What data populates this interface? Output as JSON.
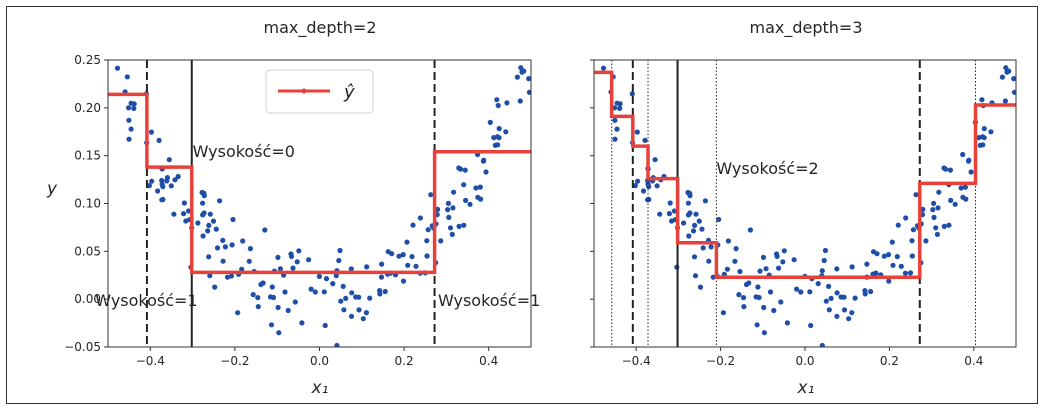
{
  "chart_data": [
    {
      "type": "scatter",
      "title": "max_depth=2",
      "xlabel": "x₁",
      "ylabel": "y",
      "xlim": [
        -0.5,
        0.5
      ],
      "ylim": [
        -0.05,
        0.25
      ],
      "xticks": [
        "−0.4",
        "−0.2",
        "0.0",
        "0.2",
        "0.4"
      ],
      "xtick_values": [
        -0.4,
        -0.2,
        0.0,
        0.2,
        0.4
      ],
      "yticks": [
        "−0.05",
        "0.00",
        "0.05",
        "0.10",
        "0.15",
        "0.20",
        "0.25"
      ],
      "ytick_values": [
        -0.05,
        0.0,
        0.05,
        0.1,
        0.15,
        0.2,
        0.25
      ],
      "legend": {
        "label": "ŷ",
        "placement": "upper-center"
      },
      "prediction_steps": [
        {
          "x0": -0.5,
          "x1": -0.408,
          "y": 0.214
        },
        {
          "x0": -0.408,
          "x1": -0.302,
          "y": 0.138
        },
        {
          "x0": -0.302,
          "x1": 0.272,
          "y": 0.028
        },
        {
          "x0": 0.272,
          "x1": 0.5,
          "y": 0.154
        }
      ],
      "splits": [
        {
          "x": -0.302,
          "style": "solid"
        },
        {
          "x": -0.408,
          "style": "dashed"
        },
        {
          "x": 0.272,
          "style": "dashed"
        }
      ],
      "annotations": [
        {
          "text": "Wysokość=0",
          "x": -0.3,
          "y": 0.155
        },
        {
          "text": "Wysokość=1",
          "x": -0.53,
          "y": -0.001
        },
        {
          "text": "Wysokość=1",
          "x": 0.28,
          "y": -0.001
        }
      ]
    },
    {
      "type": "scatter",
      "title": "max_depth=3",
      "xlabel": "x₁",
      "xlim": [
        -0.5,
        0.5
      ],
      "ylim": [
        -0.05,
        0.25
      ],
      "xticks": [
        "−0.4",
        "−0.2",
        "0.0",
        "0.2",
        "0.4"
      ],
      "xtick_values": [
        -0.4,
        -0.2,
        0.0,
        0.2,
        0.4
      ],
      "ytick_values": [
        -0.05,
        0.0,
        0.05,
        0.1,
        0.15,
        0.2,
        0.25
      ],
      "prediction_steps": [
        {
          "x0": -0.5,
          "x1": -0.458,
          "y": 0.237
        },
        {
          "x0": -0.458,
          "x1": -0.408,
          "y": 0.191
        },
        {
          "x0": -0.408,
          "x1": -0.372,
          "y": 0.16
        },
        {
          "x0": -0.372,
          "x1": -0.302,
          "y": 0.126
        },
        {
          "x0": -0.302,
          "x1": -0.21,
          "y": 0.059
        },
        {
          "x0": -0.21,
          "x1": 0.272,
          "y": 0.023
        },
        {
          "x0": 0.272,
          "x1": 0.404,
          "y": 0.121
        },
        {
          "x0": 0.404,
          "x1": 0.5,
          "y": 0.203
        }
      ],
      "splits": [
        {
          "x": -0.302,
          "style": "solid"
        },
        {
          "x": -0.408,
          "style": "dashed"
        },
        {
          "x": 0.272,
          "style": "dashed"
        },
        {
          "x": -0.458,
          "style": "dotted"
        },
        {
          "x": -0.372,
          "style": "dotted"
        },
        {
          "x": -0.21,
          "style": "dotted"
        },
        {
          "x": 0.404,
          "style": "dotted"
        }
      ],
      "annotations": [
        {
          "text": "Wysokość=2",
          "x": -0.21,
          "y": 0.137
        }
      ]
    }
  ],
  "colors": {
    "points": "#1f4ea8",
    "prediction": "#e8413a",
    "axis": "#333333"
  }
}
